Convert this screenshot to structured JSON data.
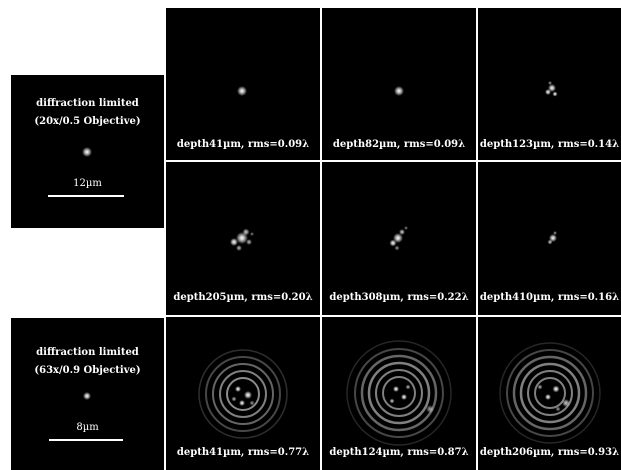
{
  "reference_panels": [
    {
      "title_line1": "diffraction limited",
      "title_line2": "(20x/0.5  Objective)",
      "scale_label": "12µm"
    },
    {
      "title_line1": "diffraction limited",
      "title_line2": "(63x/0.9 Objective)",
      "scale_label": "8µm"
    }
  ],
  "grid": [
    [
      {
        "caption": "depth41µm, rms=0.09λ"
      },
      {
        "caption": "depth82µm, rms=0.09λ"
      },
      {
        "caption": "depth123µm, rms=0.14λ"
      }
    ],
    [
      {
        "caption": "depth205µm, rms=0.20λ"
      },
      {
        "caption": "depth308µm, rms=0.22λ"
      },
      {
        "caption": "depth410µm, rms=0.16λ"
      }
    ],
    [
      {
        "caption": "depth41µm, rms=0.77λ"
      },
      {
        "caption": "depth124µm, rms=0.87λ"
      },
      {
        "caption": "depth206µm, rms=0.93λ"
      }
    ]
  ]
}
